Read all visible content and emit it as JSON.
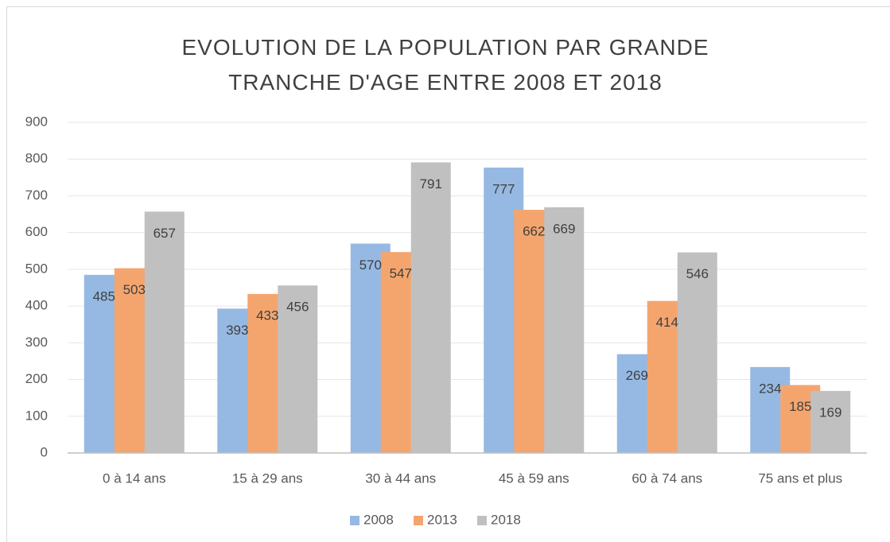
{
  "chart_data": {
    "type": "bar",
    "title": "EVOLUTION DE LA POPULATION PAR GRANDE TRANCHE D'AGE ENTRE 2008 ET 2018",
    "categories": [
      "0 à 14 ans",
      "15 à 29 ans",
      "30 à 44 ans",
      "45 à 59 ans",
      "60 à 74 ans",
      "75 ans et plus"
    ],
    "series": [
      {
        "name": "2008",
        "color": "#95b9e3",
        "values": [
          485,
          393,
          570,
          777,
          269,
          234
        ]
      },
      {
        "name": "2013",
        "color": "#f4a56e",
        "values": [
          503,
          433,
          547,
          662,
          414,
          185
        ]
      },
      {
        "name": "2018",
        "color": "#c0c0c0",
        "values": [
          657,
          456,
          791,
          669,
          546,
          169
        ]
      }
    ],
    "ylim": [
      0,
      900
    ],
    "yticks": [
      0,
      100,
      200,
      300,
      400,
      500,
      600,
      700,
      800,
      900
    ],
    "grid": true,
    "legend": "bottom"
  }
}
